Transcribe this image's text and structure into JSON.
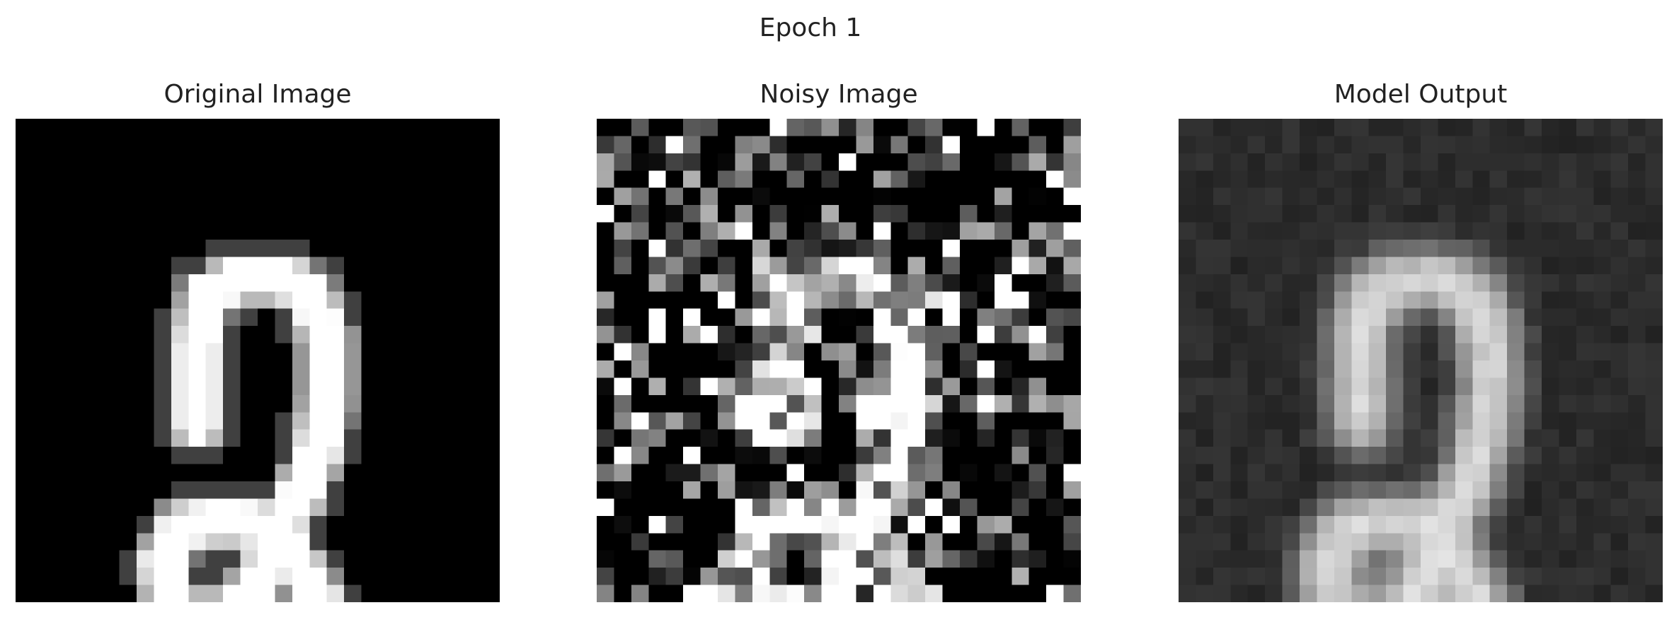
{
  "figure": {
    "suptitle": "Epoch 1"
  },
  "panels": [
    {
      "title": "Original Image"
    },
    {
      "title": "Noisy Image"
    },
    {
      "title": "Model Output"
    }
  ],
  "colormap": "gray"
}
